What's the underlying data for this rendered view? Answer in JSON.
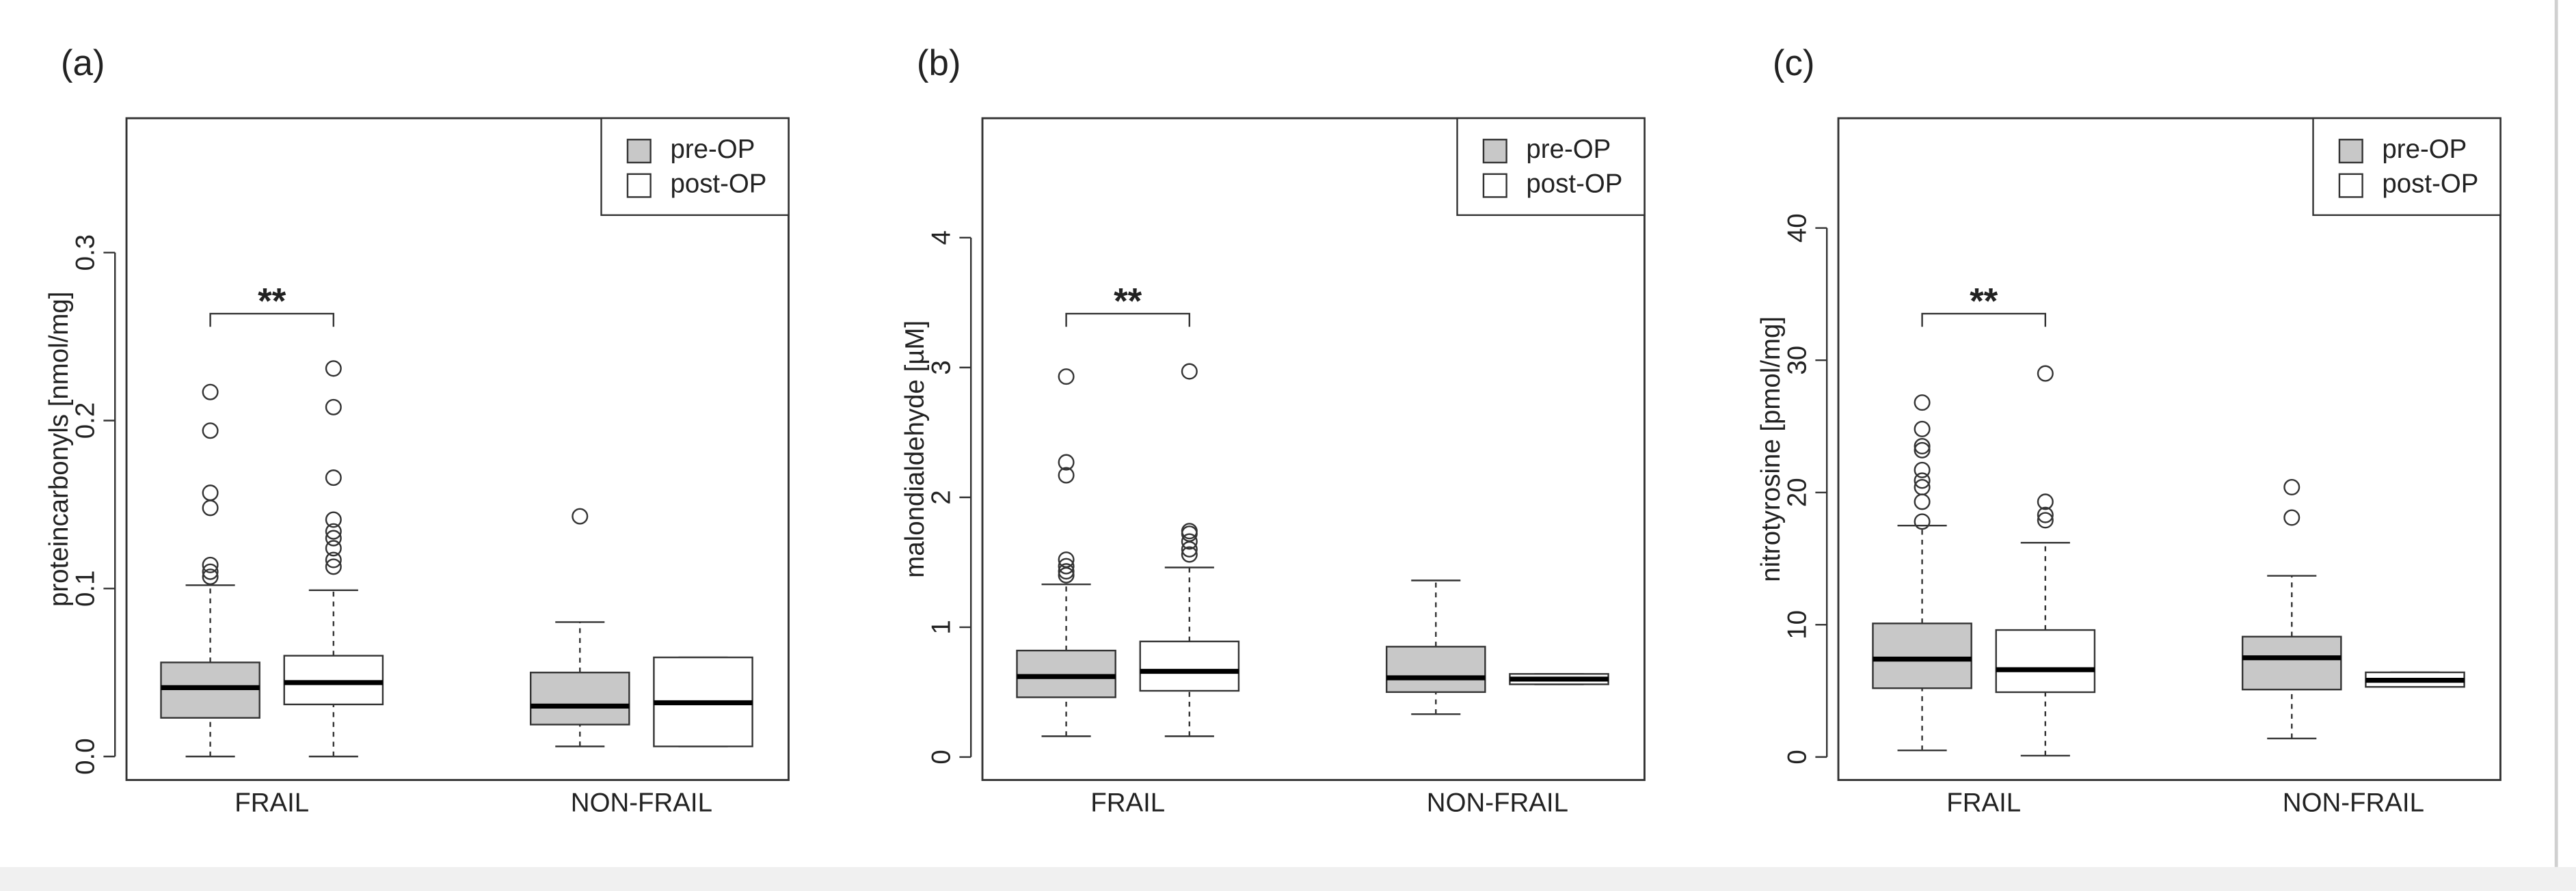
{
  "chart_data": [
    {
      "type": "box",
      "panel_label": "(a)",
      "ylabel": "proteincarbonyls [nmol/mg]",
      "annotation": "**",
      "categories": [
        "FRAIL",
        "NON-FRAIL"
      ],
      "series": [
        {
          "name": "pre-OP",
          "color": "#c8c8c8",
          "boxes": [
            {
              "whislo": 0,
              "q1": 0.023,
              "med": 0.041,
              "q3": 0.056,
              "whishi": 0.102,
              "fliers": [
                0.107,
                0.11,
                0.114,
                0.148,
                0.157,
                0.194,
                0.217
              ]
            },
            {
              "whislo": 0.006,
              "q1": 0.019,
              "med": 0.03,
              "q3": 0.05,
              "whishi": 0.08,
              "fliers": [
                0.143
              ]
            }
          ]
        },
        {
          "name": "post-OP",
          "color": "#ffffff",
          "boxes": [
            {
              "whislo": 0,
              "q1": 0.031,
              "med": 0.044,
              "q3": 0.06,
              "whishi": 0.099,
              "fliers": [
                0.113,
                0.117,
                0.124,
                0.13,
                0.134,
                0.141,
                0.166,
                0.208,
                0.231
              ]
            },
            {
              "whislo": 0.006,
              "q1": 0.006,
              "med": 0.032,
              "q3": 0.059,
              "whishi": 0.059,
              "fliers": []
            }
          ]
        }
      ],
      "ylim": [
        -0.014,
        0.38
      ],
      "yticks": [
        {
          "value": 0,
          "label": "0.0"
        },
        0.1,
        0.2,
        0.3
      ]
    },
    {
      "type": "box",
      "panel_label": "(b)",
      "ylabel": "malondialdehyde [µM]",
      "annotation": "**",
      "categories": [
        "FRAIL",
        "NON-FRAIL"
      ],
      "series": [
        {
          "name": "pre-OP",
          "color": "#c8c8c8",
          "boxes": [
            {
              "whislo": 0.16,
              "q1": 0.46,
              "med": 0.62,
              "q3": 0.82,
              "whishi": 1.33,
              "fliers": [
                1.4,
                1.43,
                1.47,
                1.52,
                2.17,
                2.27,
                2.93
              ]
            },
            {
              "whislo": 0.33,
              "q1": 0.5,
              "med": 0.61,
              "q3": 0.85,
              "whishi": 1.36,
              "fliers": []
            }
          ]
        },
        {
          "name": "post-OP",
          "color": "#ffffff",
          "boxes": [
            {
              "whislo": 0.16,
              "q1": 0.51,
              "med": 0.66,
              "q3": 0.89,
              "whishi": 1.46,
              "fliers": [
                1.56,
                1.6,
                1.66,
                1.72,
                1.74,
                2.97
              ]
            },
            {
              "whislo": 0.56,
              "q1": 0.56,
              "med": 0.6,
              "q3": 0.64,
              "whishi": 0.64,
              "fliers": []
            }
          ]
        }
      ],
      "ylim": [
        -0.177,
        4.92
      ],
      "yticks": [
        0,
        1,
        2,
        3,
        4
      ]
    },
    {
      "type": "box",
      "panel_label": "(c)",
      "ylabel": "nitrotyrosine [pmol/mg]",
      "annotation": "**",
      "categories": [
        "FRAIL",
        "NON-FRAIL"
      ],
      "series": [
        {
          "name": "pre-OP",
          "color": "#c8c8c8",
          "boxes": [
            {
              "whislo": 0.5,
              "q1": 5.2,
              "med": 7.4,
              "q3": 10.1,
              "whishi": 17.5,
              "fliers": [
                17.8,
                19.3,
                20.4,
                20.9,
                21.7,
                23.2,
                23.5,
                24.8,
                26.8
              ]
            },
            {
              "whislo": 1.4,
              "q1": 5.1,
              "med": 7.5,
              "q3": 9.1,
              "whishi": 13.7,
              "fliers": [
                18.1,
                20.4
              ]
            }
          ]
        },
        {
          "name": "post-OP",
          "color": "#ffffff",
          "boxes": [
            {
              "whislo": 0.1,
              "q1": 4.9,
              "med": 6.6,
              "q3": 9.6,
              "whishi": 16.2,
              "fliers": [
                17.9,
                18.3,
                19.3,
                29.0
              ]
            },
            {
              "whislo": 5.3,
              "q1": 5.3,
              "med": 5.8,
              "q3": 6.4,
              "whishi": 6.4,
              "fliers": []
            }
          ]
        }
      ],
      "ylim": [
        -1.74,
        48.3
      ],
      "yticks": [
        0,
        10,
        20,
        30,
        40
      ]
    }
  ]
}
